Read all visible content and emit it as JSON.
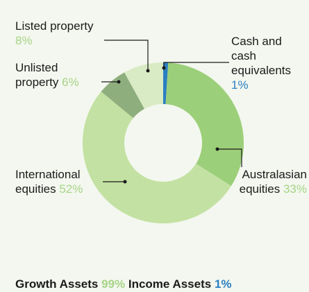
{
  "chart_data": {
    "type": "donut",
    "categories": [
      "Cash and cash equivalents",
      "Australasian equities",
      "International equities",
      "Unlisted property",
      "Listed property"
    ],
    "values": [
      1,
      33,
      52,
      6,
      8
    ],
    "value_labels": [
      "1%",
      "33%",
      "52%",
      "6%",
      "8%"
    ],
    "colors": [
      "#2b7fc0",
      "#9ccf79",
      "#c3e1a2",
      "#8fae7e",
      "#d9ebc4"
    ],
    "label_colors": [
      "#2b7fc0",
      "#a6d486",
      "#a6d486",
      "#a6d486",
      "#a6d486"
    ]
  },
  "footer": {
    "labels": [
      "Growth Assets",
      "Income Assets"
    ],
    "values": [
      99,
      1
    ],
    "value_labels": [
      "99%",
      "1%"
    ],
    "label_colors": [
      "#a6d486",
      "#2b7fc0"
    ]
  }
}
